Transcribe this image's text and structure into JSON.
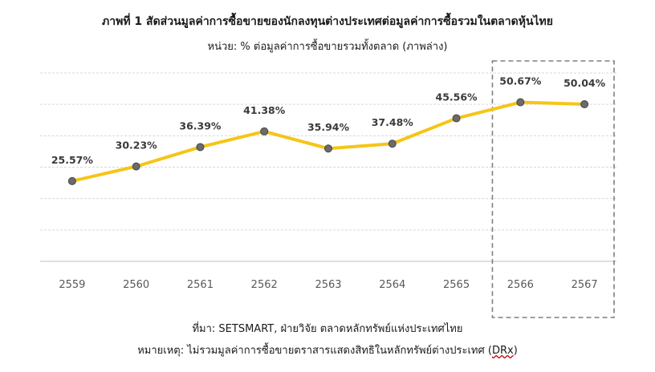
{
  "chart_data": {
    "type": "line",
    "title": "ภาพที่ 1 สัดส่วนมูลค่าการซื้อขายของนักลงทุนต่างประเทศต่อมูลค่าการซื้อรวมในตลาดหุ้นไทย",
    "subtitle": "หน่วย: % ต่อมูลค่าการซื้อขายรวมทั้งตลาด (ภาพล่าง)",
    "categories": [
      "2559",
      "2560",
      "2561",
      "2562",
      "2563",
      "2564",
      "2565",
      "2566",
      "2567"
    ],
    "series": [
      {
        "values": [
          25.57,
          30.23,
          36.39,
          41.38,
          35.94,
          37.48,
          45.56,
          50.67,
          50.04
        ],
        "labels": [
          "25.57%",
          "30.23%",
          "36.39%",
          "41.38%",
          "35.94%",
          "37.48%",
          "45.56%",
          "50.67%",
          "50.04%"
        ]
      }
    ],
    "ylim": [
      0,
      60
    ],
    "grid": true,
    "highlight_categories": [
      "2566",
      "2567"
    ],
    "colors": {
      "line": "#F5C518",
      "marker_fill": "#6b6b6b",
      "marker_stroke": "#444444",
      "grid": "#d9d9d9",
      "highlight_box": "#7f7f7f"
    }
  },
  "footer": {
    "source": "ที่มา: SETSMART, ฝ่ายวิจัย ตลาดหลักทรัพย์แห่งประเทศไทย",
    "note_prefix": "หมายเหตุ: ไม่รวมมูลค่าการซื้อขายตราสารแสดงสิทธิในหลักทรัพย์ต่างประเทศ (",
    "note_term": "DRx",
    "note_suffix": ")"
  }
}
